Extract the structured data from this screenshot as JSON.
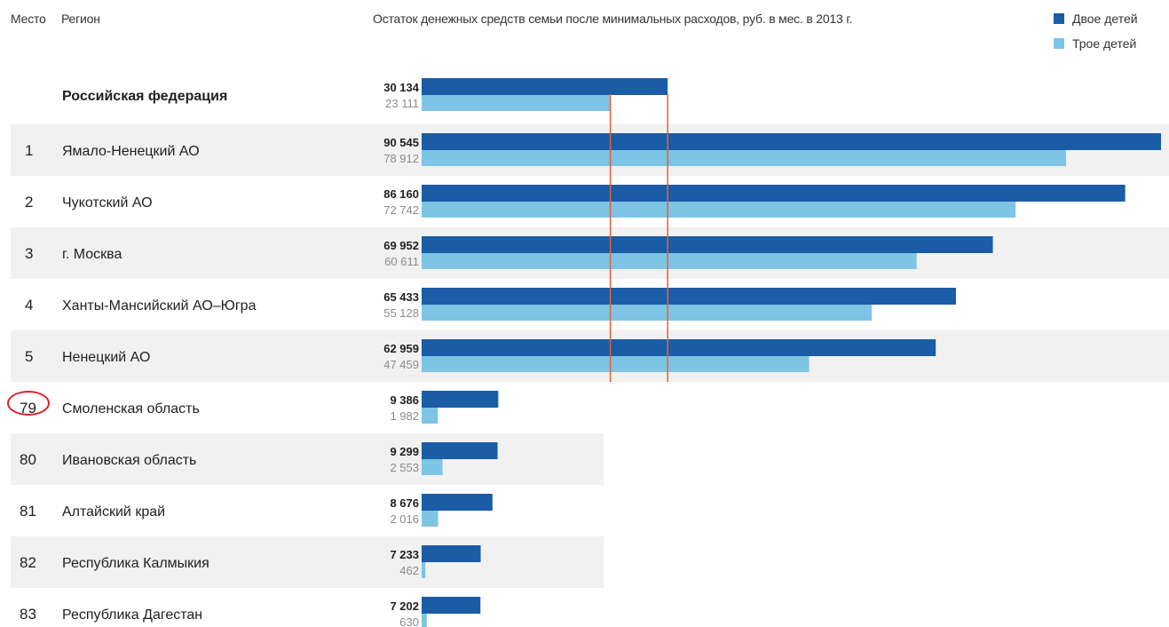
{
  "header": {
    "rank_label": "Место",
    "region_label": "Регион"
  },
  "chart_data": {
    "type": "bar",
    "title": "Остаток денежных средств семьи после минимальных расходов, руб. в мес. в 2013 г.",
    "orientation": "horizontal",
    "legend_position": "top-right",
    "xlim": [
      0,
      90545
    ],
    "series": [
      {
        "name": "Двое детей",
        "color": "#1a5ca6"
      },
      {
        "name": "Трое детей",
        "color": "#7ec4e4"
      }
    ],
    "rows": [
      {
        "rank": "",
        "region": "Российская федерация",
        "v2": 30134,
        "v3": 23111,
        "v2_label": "30 134",
        "v3_label": "23 111",
        "bold": true
      },
      {
        "rank": "1",
        "region": "Ямало-Ненецкий АО",
        "v2": 90545,
        "v3": 78912,
        "v2_label": "90 545",
        "v3_label": "78 912"
      },
      {
        "rank": "2",
        "region": "Чукотский АО",
        "v2": 86160,
        "v3": 72742,
        "v2_label": "86 160",
        "v3_label": "72 742"
      },
      {
        "rank": "3",
        "region": "г. Москва",
        "v2": 69952,
        "v3": 60611,
        "v2_label": "69 952",
        "v3_label": "60 611"
      },
      {
        "rank": "4",
        "region": "Ханты-Мансийский АО–Югра",
        "v2": 65433,
        "v3": 55128,
        "v2_label": "65 433",
        "v3_label": "55 128"
      },
      {
        "rank": "5",
        "region": "Ненецкий АО",
        "v2": 62959,
        "v3": 47459,
        "v2_label": "62 959",
        "v3_label": "47 459"
      },
      {
        "rank": "79",
        "region": "Смоленская область",
        "v2": 9386,
        "v3": 1982,
        "v2_label": "9 386",
        "v3_label": "1 982",
        "highlight": true
      },
      {
        "rank": "80",
        "region": "Ивановская область",
        "v2": 9299,
        "v3": 2553,
        "v2_label": "9 299",
        "v3_label": "2 553"
      },
      {
        "rank": "81",
        "region": "Алтайский край",
        "v2": 8676,
        "v3": 2016,
        "v2_label": "8 676",
        "v3_label": "2 016"
      },
      {
        "rank": "82",
        "region": "Республика Калмыкия",
        "v2": 7233,
        "v3": 462,
        "v2_label": "7 233",
        "v3_label": "462"
      },
      {
        "rank": "83",
        "region": "Республика Дагестан",
        "v2": 7202,
        "v3": 630,
        "v2_label": "7 202",
        "v3_label": "630"
      }
    ],
    "reference_lines": [
      {
        "series": "Двое детей",
        "value": 30134,
        "color": "#e0623a"
      },
      {
        "series": "Трое детей",
        "value": 23111,
        "color": "#e0623a"
      }
    ],
    "highlight_color": "#d4232a"
  }
}
